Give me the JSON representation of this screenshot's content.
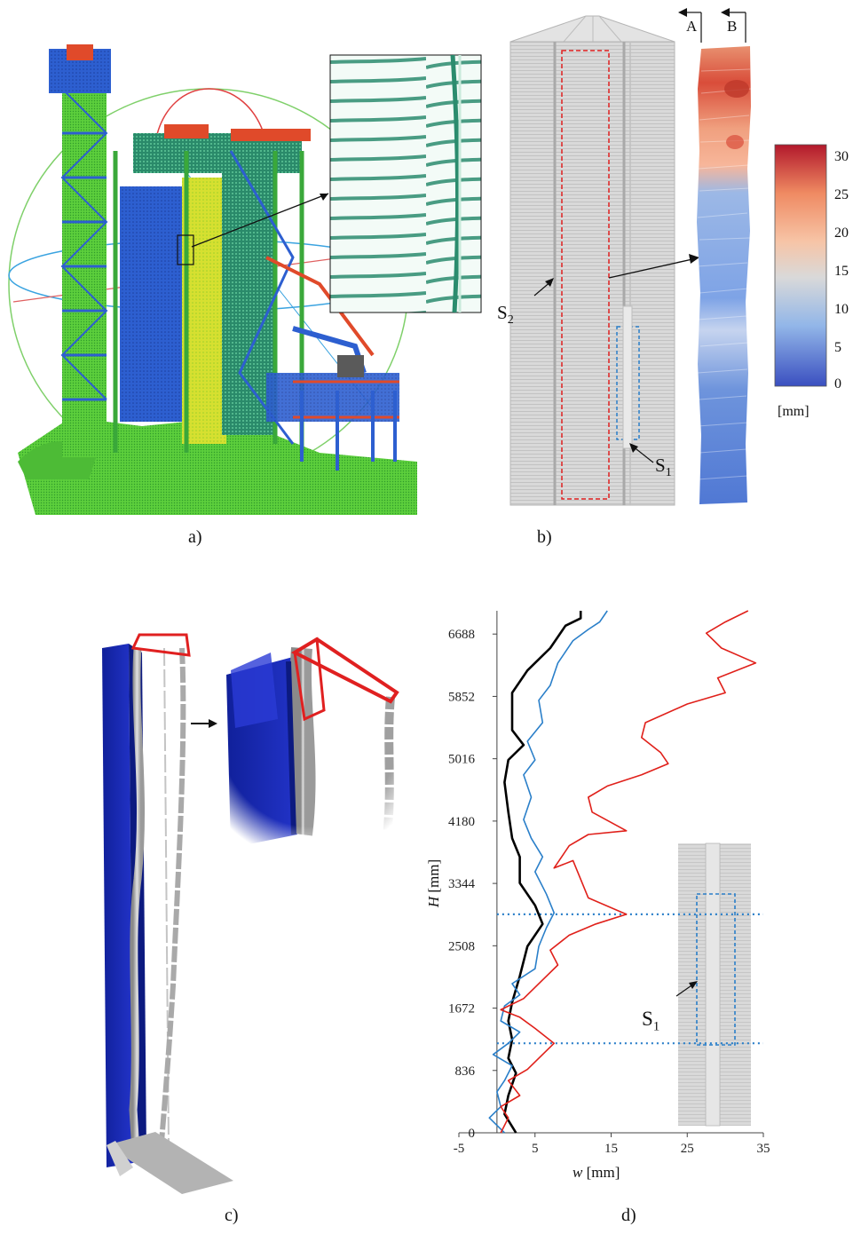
{
  "captions": {
    "a": "a)",
    "b": "b)",
    "c": "c)",
    "d": "d)"
  },
  "panel_b": {
    "section_labels": [
      "A",
      "B"
    ],
    "s2_label": "S",
    "s2_sub": "2",
    "s1_label": "S",
    "s1_sub": "1",
    "colorbar": {
      "ticks": [
        "30",
        "25",
        "20",
        "15",
        "10",
        "5",
        "0"
      ],
      "tick_values": [
        30,
        25,
        20,
        15,
        10,
        5,
        0
      ],
      "min": 0,
      "max": 32,
      "unit": "[mm]",
      "colors": [
        "#b2182b",
        "#ef8a62",
        "#fddbc7",
        "#d9d9d9",
        "#92c5de",
        "#4f7fd6",
        "#3a4fc0"
      ]
    }
  },
  "panel_d": {
    "s1_label": "S",
    "s1_sub": "1"
  },
  "chart_data": {
    "type": "line",
    "xlabel_italic": "w",
    "xlabel_unit": " [mm]",
    "ylabel_italic": "H",
    "ylabel_unit": " [mm]",
    "xlim": [
      -5,
      35
    ],
    "ylim": [
      0,
      7000
    ],
    "x_ticks": [
      -5,
      5,
      15,
      25,
      35
    ],
    "y_ticks": [
      0,
      836,
      1672,
      2508,
      3344,
      4180,
      5016,
      5852,
      6688
    ],
    "reference_lines_h": [
      1200,
      2930
    ],
    "series": [
      {
        "color": "#000000",
        "points": [
          [
            2.5,
            0
          ],
          [
            1.0,
            250
          ],
          [
            1.5,
            500
          ],
          [
            2.5,
            800
          ],
          [
            1.5,
            1000
          ],
          [
            2.0,
            1250
          ],
          [
            1.5,
            1500
          ],
          [
            2.0,
            1750
          ],
          [
            3.0,
            2100
          ],
          [
            4.0,
            2500
          ],
          [
            6.0,
            2800
          ],
          [
            5.0,
            3050
          ],
          [
            3.0,
            3350
          ],
          [
            3.0,
            3700
          ],
          [
            2.0,
            3950
          ],
          [
            1.5,
            4300
          ],
          [
            1.0,
            4700
          ],
          [
            1.5,
            5000
          ],
          [
            3.5,
            5200
          ],
          [
            2.0,
            5400
          ],
          [
            2.0,
            5900
          ],
          [
            4.0,
            6200
          ],
          [
            7.0,
            6500
          ],
          [
            9.0,
            6800
          ],
          [
            11.0,
            6900
          ],
          [
            11.0,
            7000
          ]
        ]
      },
      {
        "color": "#2a7fc9",
        "points": [
          [
            1.0,
            0
          ],
          [
            -1.0,
            200
          ],
          [
            0.5,
            350
          ],
          [
            0.0,
            550
          ],
          [
            1.0,
            700
          ],
          [
            2.0,
            900
          ],
          [
            -0.5,
            1050
          ],
          [
            1.5,
            1200
          ],
          [
            3.0,
            1350
          ],
          [
            0.5,
            1500
          ],
          [
            1.0,
            1700
          ],
          [
            3.0,
            1850
          ],
          [
            2.0,
            2000
          ],
          [
            5.0,
            2200
          ],
          [
            5.5,
            2500
          ],
          [
            6.5,
            2750
          ],
          [
            7.5,
            2950
          ],
          [
            6.5,
            3200
          ],
          [
            5.0,
            3500
          ],
          [
            6.0,
            3700
          ],
          [
            4.5,
            3950
          ],
          [
            3.5,
            4200
          ],
          [
            4.5,
            4500
          ],
          [
            3.5,
            4800
          ],
          [
            5.0,
            5000
          ],
          [
            4.0,
            5250
          ],
          [
            6.0,
            5500
          ],
          [
            5.5,
            5800
          ],
          [
            7.0,
            6000
          ],
          [
            8.0,
            6300
          ],
          [
            10.0,
            6600
          ],
          [
            12.0,
            6750
          ],
          [
            13.5,
            6850
          ],
          [
            14.5,
            7000
          ]
        ]
      },
      {
        "color": "#e0201a",
        "points": [
          [
            0.5,
            0
          ],
          [
            1.5,
            200
          ],
          [
            0.5,
            350
          ],
          [
            3.0,
            500
          ],
          [
            1.5,
            700
          ],
          [
            4.0,
            850
          ],
          [
            6.0,
            1050
          ],
          [
            7.5,
            1200
          ],
          [
            5.0,
            1400
          ],
          [
            3.0,
            1550
          ],
          [
            0.5,
            1650
          ],
          [
            3.5,
            1800
          ],
          [
            6.0,
            2050
          ],
          [
            8.0,
            2250
          ],
          [
            7.0,
            2450
          ],
          [
            9.5,
            2650
          ],
          [
            13.0,
            2800
          ],
          [
            17.0,
            2930
          ],
          [
            12.0,
            3150
          ],
          [
            11.0,
            3400
          ],
          [
            10.0,
            3650
          ],
          [
            7.5,
            3550
          ],
          [
            9.5,
            3850
          ],
          [
            12.0,
            4000
          ],
          [
            17.0,
            4050
          ],
          [
            12.5,
            4300
          ],
          [
            12.0,
            4500
          ],
          [
            14.5,
            4650
          ],
          [
            19.0,
            4800
          ],
          [
            22.5,
            4950
          ],
          [
            21.5,
            5100
          ],
          [
            19.0,
            5300
          ],
          [
            19.5,
            5500
          ],
          [
            25.0,
            5750
          ],
          [
            30.0,
            5900
          ],
          [
            29.0,
            6100
          ],
          [
            34.0,
            6300
          ],
          [
            29.5,
            6500
          ],
          [
            27.5,
            6700
          ],
          [
            30.0,
            6850
          ],
          [
            33.0,
            7000
          ]
        ]
      }
    ]
  }
}
